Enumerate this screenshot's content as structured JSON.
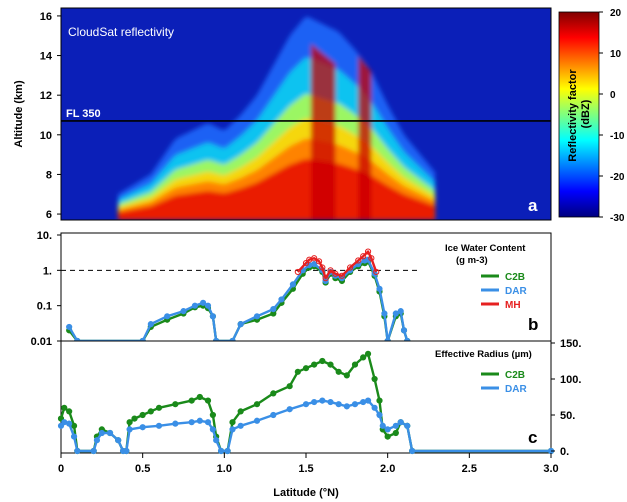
{
  "chart_data": [
    {
      "panel": "a",
      "type": "heatmap",
      "title": "CloudSat reflectivity",
      "ylabel": "Altitude (km)",
      "ylim": [
        5.7,
        16.4
      ],
      "yticks": [
        6,
        8,
        10,
        12,
        14,
        16
      ],
      "annotation": "FL 350",
      "reference_line_altitude_km": 10.7,
      "colorbar": {
        "label": "Reflectivity factor (dBZ)",
        "range": [
          -30,
          20
        ],
        "ticks": [
          20,
          10,
          0,
          -10,
          -20,
          -30
        ],
        "colors": [
          "#00007f",
          "#0000ff",
          "#007fff",
          "#00ffff",
          "#7fff7f",
          "#ffff00",
          "#ff7f00",
          "#ff0000",
          "#7f0000"
        ]
      },
      "cloud_top_km": [
        [
          0.35,
          7.0
        ],
        [
          0.55,
          8.0
        ],
        [
          0.7,
          9.8
        ],
        [
          0.8,
          10.2
        ],
        [
          0.9,
          10.6
        ],
        [
          1.0,
          10.2
        ],
        [
          1.1,
          11.0
        ],
        [
          1.2,
          12.0
        ],
        [
          1.3,
          13.5
        ],
        [
          1.4,
          15.0
        ],
        [
          1.5,
          16.0
        ],
        [
          1.6,
          15.6
        ],
        [
          1.7,
          15.2
        ],
        [
          1.8,
          14.3
        ],
        [
          1.9,
          13.2
        ],
        [
          2.0,
          11.5
        ],
        [
          2.1,
          10.0
        ],
        [
          2.2,
          9.0
        ],
        [
          2.3,
          8.0
        ]
      ]
    },
    {
      "panel": "b",
      "type": "line",
      "title": "Ice Water Content",
      "units": "(g m-3)",
      "yscale": "log",
      "ylim": [
        0.01,
        10
      ],
      "ytick_labels": [
        "10.",
        "1.",
        "0.1",
        "0.01"
      ],
      "reference_line": 1,
      "series": [
        {
          "name": "C2B",
          "color": "#1a8a1a",
          "points": [
            [
              0.05,
              0.02
            ],
            [
              0.1,
              0.01
            ],
            [
              0.5,
              0.01
            ],
            [
              0.55,
              0.025
            ],
            [
              0.65,
              0.04
            ],
            [
              0.75,
              0.06
            ],
            [
              0.82,
              0.09
            ],
            [
              0.87,
              0.1
            ],
            [
              0.9,
              0.085
            ],
            [
              0.93,
              0.05
            ],
            [
              0.95,
              0.01
            ],
            [
              1.05,
              0.01
            ],
            [
              1.1,
              0.03
            ],
            [
              1.2,
              0.04
            ],
            [
              1.3,
              0.06
            ],
            [
              1.35,
              0.12
            ],
            [
              1.42,
              0.3
            ],
            [
              1.48,
              0.8
            ],
            [
              1.52,
              1.2
            ],
            [
              1.55,
              1.3
            ],
            [
              1.6,
              0.9
            ],
            [
              1.62,
              0.45
            ],
            [
              1.65,
              0.8
            ],
            [
              1.68,
              0.6
            ],
            [
              1.72,
              0.5
            ],
            [
              1.77,
              0.9
            ],
            [
              1.82,
              1.3
            ],
            [
              1.86,
              1.6
            ],
            [
              1.88,
              1.8
            ],
            [
              1.92,
              0.7
            ],
            [
              1.95,
              0.25
            ],
            [
              1.98,
              0.05
            ],
            [
              2.0,
              0.01
            ],
            [
              2.05,
              0.05
            ],
            [
              2.08,
              0.06
            ],
            [
              2.1,
              0.02
            ],
            [
              2.12,
              0.01
            ]
          ]
        },
        {
          "name": "DAR",
          "color": "#3a8fe6",
          "points": [
            [
              0.05,
              0.025
            ],
            [
              0.1,
              0.01
            ],
            [
              0.5,
              0.01
            ],
            [
              0.55,
              0.03
            ],
            [
              0.65,
              0.05
            ],
            [
              0.75,
              0.07
            ],
            [
              0.82,
              0.1
            ],
            [
              0.87,
              0.12
            ],
            [
              0.9,
              0.1
            ],
            [
              0.93,
              0.05
            ],
            [
              0.95,
              0.01
            ],
            [
              1.05,
              0.01
            ],
            [
              1.1,
              0.03
            ],
            [
              1.2,
              0.05
            ],
            [
              1.3,
              0.08
            ],
            [
              1.35,
              0.15
            ],
            [
              1.42,
              0.4
            ],
            [
              1.48,
              1.0
            ],
            [
              1.52,
              1.4
            ],
            [
              1.55,
              1.5
            ],
            [
              1.6,
              1.0
            ],
            [
              1.62,
              0.5
            ],
            [
              1.65,
              0.9
            ],
            [
              1.68,
              0.7
            ],
            [
              1.72,
              0.6
            ],
            [
              1.77,
              1.0
            ],
            [
              1.82,
              1.5
            ],
            [
              1.86,
              1.9
            ],
            [
              1.88,
              2.0
            ],
            [
              1.92,
              0.8
            ],
            [
              1.95,
              0.3
            ],
            [
              1.98,
              0.06
            ],
            [
              2.0,
              0.01
            ],
            [
              2.05,
              0.06
            ],
            [
              2.08,
              0.07
            ],
            [
              2.1,
              0.02
            ],
            [
              2.12,
              0.01
            ]
          ]
        },
        {
          "name": "MH",
          "color": "#e62020",
          "points": [
            [
              1.45,
              0.9
            ],
            [
              1.5,
              1.6
            ],
            [
              1.52,
              2.0
            ],
            [
              1.55,
              2.2
            ],
            [
              1.58,
              1.8
            ],
            [
              1.6,
              1.2
            ],
            [
              1.62,
              0.6
            ],
            [
              1.65,
              1.0
            ],
            [
              1.68,
              0.8
            ],
            [
              1.72,
              0.7
            ],
            [
              1.77,
              1.2
            ],
            [
              1.82,
              1.9
            ],
            [
              1.85,
              2.5
            ],
            [
              1.88,
              3.4
            ],
            [
              1.9,
              2.2
            ],
            [
              1.93,
              0.9
            ]
          ]
        }
      ]
    },
    {
      "panel": "c",
      "type": "line",
      "title": "Effective Radius (µm)",
      "ylim": [
        0,
        150
      ],
      "ytick_labels": [
        "150.",
        "100.",
        "50.",
        "0."
      ],
      "xlabel": "Latitude (°N)",
      "xlim": [
        0,
        3
      ],
      "xtick_labels": [
        "0",
        "0.5",
        "1.0",
        "1.5",
        "2.0",
        "2.5",
        "3.0"
      ],
      "series": [
        {
          "name": "C2B",
          "color": "#1a8a1a",
          "points": [
            [
              0.0,
              45
            ],
            [
              0.02,
              60
            ],
            [
              0.05,
              55
            ],
            [
              0.08,
              35
            ],
            [
              0.1,
              0
            ],
            [
              0.2,
              0
            ],
            [
              0.22,
              20
            ],
            [
              0.25,
              30
            ],
            [
              0.3,
              25
            ],
            [
              0.35,
              15
            ],
            [
              0.38,
              0
            ],
            [
              0.4,
              0
            ],
            [
              0.42,
              40
            ],
            [
              0.45,
              45
            ],
            [
              0.5,
              50
            ],
            [
              0.55,
              55
            ],
            [
              0.6,
              60
            ],
            [
              0.7,
              65
            ],
            [
              0.8,
              70
            ],
            [
              0.85,
              75
            ],
            [
              0.9,
              70
            ],
            [
              0.93,
              50
            ],
            [
              0.95,
              20
            ],
            [
              0.98,
              0
            ],
            [
              1.02,
              0
            ],
            [
              1.05,
              40
            ],
            [
              1.1,
              55
            ],
            [
              1.2,
              65
            ],
            [
              1.3,
              80
            ],
            [
              1.4,
              90
            ],
            [
              1.45,
              110
            ],
            [
              1.5,
              115
            ],
            [
              1.55,
              120
            ],
            [
              1.6,
              125
            ],
            [
              1.65,
              120
            ],
            [
              1.7,
              110
            ],
            [
              1.75,
              105
            ],
            [
              1.8,
              120
            ],
            [
              1.85,
              130
            ],
            [
              1.88,
              135
            ],
            [
              1.92,
              100
            ],
            [
              1.95,
              70
            ],
            [
              1.97,
              30
            ],
            [
              2.0,
              20
            ],
            [
              2.05,
              25
            ],
            [
              2.08,
              40
            ],
            [
              2.12,
              35
            ],
            [
              2.15,
              0
            ],
            [
              3.0,
              0
            ]
          ]
        },
        {
          "name": "DAR",
          "color": "#3a8fe6",
          "points": [
            [
              0.0,
              35
            ],
            [
              0.02,
              40
            ],
            [
              0.05,
              38
            ],
            [
              0.08,
              20
            ],
            [
              0.1,
              0
            ],
            [
              0.2,
              0
            ],
            [
              0.22,
              15
            ],
            [
              0.25,
              25
            ],
            [
              0.3,
              25
            ],
            [
              0.35,
              15
            ],
            [
              0.38,
              0
            ],
            [
              0.4,
              0
            ],
            [
              0.42,
              30
            ],
            [
              0.5,
              33
            ],
            [
              0.6,
              35
            ],
            [
              0.7,
              38
            ],
            [
              0.8,
              40
            ],
            [
              0.85,
              42
            ],
            [
              0.9,
              40
            ],
            [
              0.93,
              30
            ],
            [
              0.95,
              15
            ],
            [
              0.98,
              0
            ],
            [
              1.02,
              0
            ],
            [
              1.05,
              30
            ],
            [
              1.1,
              35
            ],
            [
              1.2,
              42
            ],
            [
              1.3,
              50
            ],
            [
              1.4,
              58
            ],
            [
              1.5,
              65
            ],
            [
              1.55,
              68
            ],
            [
              1.6,
              70
            ],
            [
              1.65,
              68
            ],
            [
              1.7,
              65
            ],
            [
              1.75,
              62
            ],
            [
              1.8,
              65
            ],
            [
              1.85,
              68
            ],
            [
              1.88,
              70
            ],
            [
              1.92,
              60
            ],
            [
              1.95,
              50
            ],
            [
              1.97,
              35
            ],
            [
              2.0,
              30
            ],
            [
              2.05,
              35
            ],
            [
              2.08,
              40
            ],
            [
              2.12,
              35
            ],
            [
              2.15,
              0
            ],
            [
              3.0,
              0
            ]
          ]
        }
      ]
    }
  ]
}
